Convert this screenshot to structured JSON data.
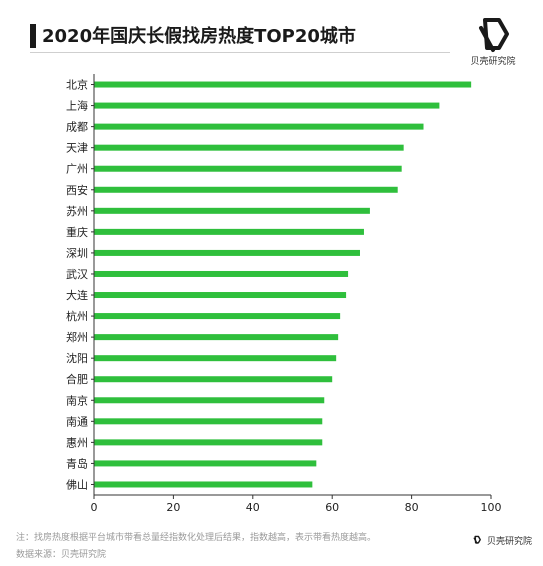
{
  "header": {
    "title": "2020年国庆长假找房热度TOP20城市"
  },
  "brand": {
    "name": "贝壳研究院",
    "icon": "beike-logo-icon",
    "color": "#1a1a1a"
  },
  "footer": {
    "note": "注：找房热度根据平台城市带看总量经指数化处理后结果，指数越高，表示带看热度越高。",
    "source": "数据来源：贝壳研究院"
  },
  "chart_data": {
    "type": "bar",
    "orientation": "horizontal",
    "title": "2020年国庆长假找房热度TOP20城市",
    "categories": [
      "北京",
      "上海",
      "成都",
      "天津",
      "广州",
      "西安",
      "苏州",
      "重庆",
      "深圳",
      "武汉",
      "大连",
      "杭州",
      "郑州",
      "沈阳",
      "合肥",
      "南京",
      "南通",
      "惠州",
      "青岛",
      "佛山"
    ],
    "values": [
      95,
      87,
      83,
      78,
      77.5,
      76.5,
      69.5,
      68,
      67,
      64,
      63.5,
      62,
      61.5,
      61,
      60,
      58,
      57.5,
      57.5,
      56,
      55
    ],
    "xlim": [
      0,
      100
    ],
    "xticks": [
      0,
      20,
      40,
      60,
      80,
      100
    ],
    "grid": false,
    "legend": "none",
    "bar_color": "#2fbf3c",
    "axis_color": "#333333"
  }
}
